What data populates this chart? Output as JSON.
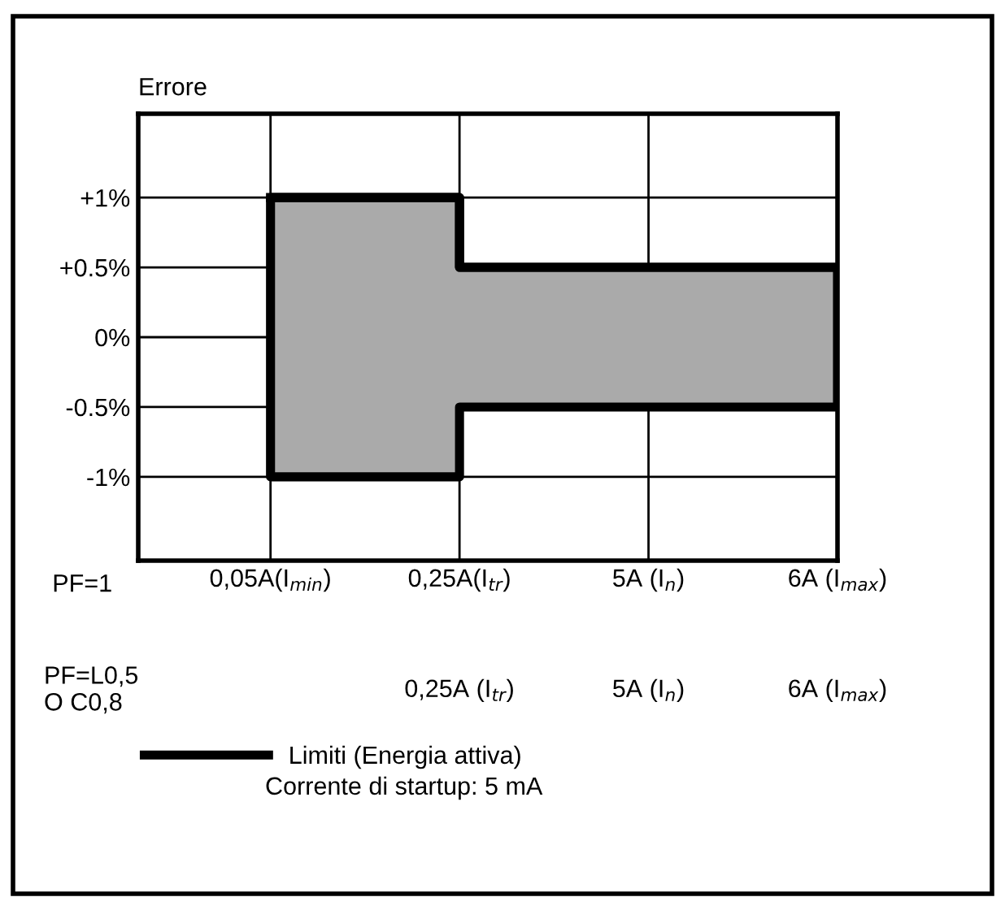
{
  "chart_data": {
    "type": "step",
    "ylabel": "Errore",
    "categories": [
      "0,05A(I$_{min}$)",
      "0,25A(I$_{tr}$)",
      "5A (I$_{n}$)",
      "6A (I$_{max}$)"
    ],
    "series": [
      {
        "name": "Limiti (Energia attiva)",
        "color": "#000000",
        "values": [
          1,
          0.5,
          0.5,
          0.5
        ],
        "lower": [
          -1,
          -0.5,
          -0.5,
          -0.5
        ],
        "upper": [
          1,
          0.5,
          0.5,
          0.5
        ]
      }
    ],
    "ylim": [
      -1.6,
      1.6
    ],
    "yticks": [
      {
        "value": 1,
        "label": "+1%"
      },
      {
        "value": 0.5,
        "label": "+0.5%"
      },
      {
        "value": 0,
        "label": "0%"
      },
      {
        "value": -0.5,
        "label": "-0.5%"
      },
      {
        "value": -1,
        "label": "-1%"
      }
    ],
    "grid": true,
    "legend": "bottom",
    "xlabel": "PF=1",
    "annotations": [
      "PF=L0,5\nO C0,8",
      "0,25A (I$_{tr}$)",
      "5A (I$_{n}$)",
      "6A (I$_{max}$)",
      "Corrente di startup: 5 mA"
    ]
  }
}
